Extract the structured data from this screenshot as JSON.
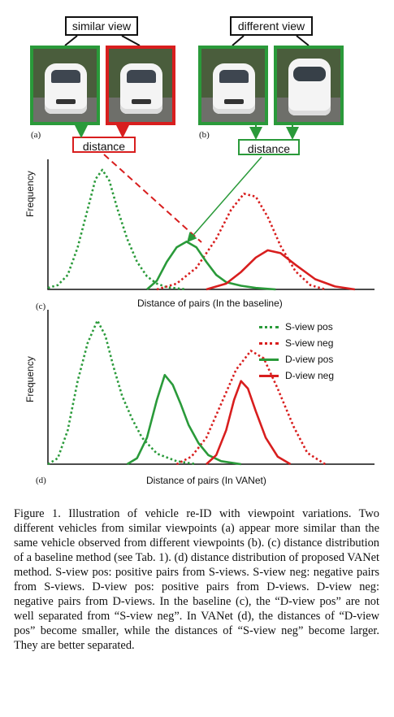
{
  "labels": {
    "similar_view": "similar view",
    "different_view": "different view",
    "distance_a": "distance",
    "distance_b": "distance",
    "sub_a": "(a)",
    "sub_b": "(b)",
    "sub_c": "(c)",
    "sub_d": "(d)"
  },
  "colors": {
    "green": "#2a9a3a",
    "red": "#d81e1e"
  },
  "chart_data": [
    {
      "type": "line",
      "panel": "(c)",
      "xlabel": "Distance of pairs (In the baseline)",
      "ylabel": "Frequency",
      "grid": false,
      "series": [
        {
          "name": "S-view pos",
          "style": "dotted",
          "color": "#2a9a3a",
          "values": [
            [
              0,
              2
            ],
            [
              10,
              6
            ],
            [
              20,
              20
            ],
            [
              30,
              58
            ],
            [
              40,
              110
            ],
            [
              48,
              152
            ],
            [
              55,
              165
            ],
            [
              62,
              150
            ],
            [
              70,
              112
            ],
            [
              80,
              70
            ],
            [
              90,
              38
            ],
            [
              100,
              18
            ],
            [
              110,
              8
            ],
            [
              120,
              3
            ],
            [
              140,
              0
            ]
          ]
        },
        {
          "name": "S-view neg",
          "style": "dotted",
          "color": "#d81e1e",
          "values": [
            [
              110,
              0
            ],
            [
              130,
              8
            ],
            [
              150,
              30
            ],
            [
              170,
              70
            ],
            [
              185,
              110
            ],
            [
              198,
              132
            ],
            [
              210,
              128
            ],
            [
              222,
              100
            ],
            [
              235,
              60
            ],
            [
              250,
              25
            ],
            [
              265,
              6
            ],
            [
              280,
              0
            ]
          ]
        },
        {
          "name": "D-view pos",
          "style": "solid",
          "color": "#2a9a3a",
          "values": [
            [
              100,
              0
            ],
            [
              110,
              12
            ],
            [
              120,
              38
            ],
            [
              130,
              58
            ],
            [
              140,
              66
            ],
            [
              150,
              58
            ],
            [
              160,
              38
            ],
            [
              170,
              20
            ],
            [
              180,
              10
            ],
            [
              195,
              5
            ],
            [
              210,
              2
            ],
            [
              230,
              0
            ]
          ]
        },
        {
          "name": "D-view neg",
          "style": "solid",
          "color": "#d81e1e",
          "values": [
            [
              160,
              0
            ],
            [
              180,
              8
            ],
            [
              195,
              24
            ],
            [
              210,
              44
            ],
            [
              222,
              54
            ],
            [
              235,
              50
            ],
            [
              250,
              34
            ],
            [
              270,
              14
            ],
            [
              290,
              4
            ],
            [
              310,
              0
            ]
          ]
        }
      ]
    },
    {
      "type": "line",
      "panel": "(d)",
      "xlabel": "Distance of pairs (In VANet)",
      "ylabel": "Frequency",
      "grid": false,
      "series": [
        {
          "name": "S-view pos",
          "style": "dotted",
          "color": "#2a9a3a",
          "values": [
            [
              0,
              0
            ],
            [
              10,
              8
            ],
            [
              20,
              45
            ],
            [
              30,
              110
            ],
            [
              40,
              160
            ],
            [
              50,
              190
            ],
            [
              58,
              170
            ],
            [
              66,
              130
            ],
            [
              75,
              90
            ],
            [
              85,
              60
            ],
            [
              95,
              35
            ],
            [
              110,
              14
            ],
            [
              130,
              4
            ],
            [
              150,
              0
            ]
          ]
        },
        {
          "name": "S-view neg",
          "style": "dotted",
          "color": "#d81e1e",
          "values": [
            [
              130,
              0
            ],
            [
              145,
              10
            ],
            [
              160,
              35
            ],
            [
              175,
              80
            ],
            [
              190,
              125
            ],
            [
              205,
              150
            ],
            [
              218,
              140
            ],
            [
              232,
              100
            ],
            [
              248,
              50
            ],
            [
              262,
              15
            ],
            [
              280,
              0
            ]
          ]
        },
        {
          "name": "D-view pos",
          "style": "solid",
          "color": "#2a9a3a",
          "values": [
            [
              80,
              0
            ],
            [
              90,
              8
            ],
            [
              100,
              35
            ],
            [
              110,
              85
            ],
            [
              118,
              118
            ],
            [
              126,
              105
            ],
            [
              134,
              80
            ],
            [
              142,
              52
            ],
            [
              152,
              28
            ],
            [
              162,
              12
            ],
            [
              175,
              4
            ],
            [
              195,
              0
            ]
          ]
        },
        {
          "name": "D-view neg",
          "style": "solid",
          "color": "#d81e1e",
          "values": [
            [
              160,
              0
            ],
            [
              170,
              12
            ],
            [
              180,
              45
            ],
            [
              188,
              85
            ],
            [
              195,
              110
            ],
            [
              202,
              100
            ],
            [
              210,
              70
            ],
            [
              220,
              35
            ],
            [
              232,
              10
            ],
            [
              245,
              0
            ]
          ]
        }
      ]
    }
  ],
  "legend": [
    {
      "label": "S-view pos",
      "style": "dotted",
      "color": "#2a9a3a"
    },
    {
      "label": "S-view neg",
      "style": "dotted",
      "color": "#d81e1e"
    },
    {
      "label": "D-view pos",
      "style": "solid",
      "color": "#2a9a3a"
    },
    {
      "label": "D-view neg",
      "style": "solid",
      "color": "#d81e1e"
    }
  ],
  "caption": "Figure 1. Illustration of vehicle re-ID with viewpoint variations. Two different vehicles from similar viewpoints (a) appear more similar than the same vehicle observed from different viewpoints (b). (c) distance distribution of a baseline method (see Tab. 1). (d) distance distribution of proposed VANet method. S-view pos: positive pairs from S-views. S-view neg: negative pairs from S-views. D-view pos: positive pairs from D-views. D-view neg: negative pairs from D-views. In the baseline (c), the “D-view pos” are not well separated from “S-view neg”. In VANet (d), the distances of “D-view pos” become smaller, while the distances of “S-view neg” become larger. They are better separated."
}
